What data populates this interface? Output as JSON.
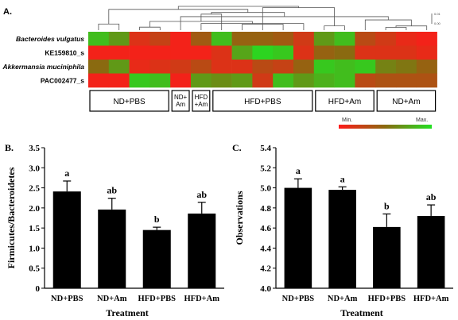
{
  "chart_data": [
    {
      "panel": "A.",
      "type": "heatmap",
      "rows": [
        "Bacteroides vulgatus",
        "KE159810_s",
        "Akkermansia muciniphila",
        "PAC002477_s"
      ],
      "group_labels": [
        "ND+PBS",
        "ND+\nAm",
        "HFD\n+Am",
        "HFD+PBS",
        "HFD+Am",
        "ND+Am"
      ],
      "group_sizes": [
        4,
        1,
        1,
        5,
        3,
        3
      ],
      "values": [
        [
          0.85,
          0.7,
          0.15,
          0.25,
          0.05,
          0.4,
          0.85,
          0.45,
          0.45,
          0.4,
          0.2,
          0.7,
          0.85,
          0.3,
          0.2,
          0.1,
          0.05
        ],
        [
          0.05,
          0.05,
          0.05,
          0.05,
          0.05,
          0.05,
          0.15,
          0.75,
          0.95,
          0.9,
          0.15,
          0.45,
          0.5,
          0.15,
          0.15,
          0.15,
          0.1
        ],
        [
          0.5,
          0.7,
          0.1,
          0.15,
          0.2,
          0.3,
          0.15,
          0.15,
          0.3,
          0.25,
          0.45,
          0.9,
          0.85,
          0.9,
          0.6,
          0.55,
          0.45
        ],
        [
          0.05,
          0.05,
          0.9,
          0.85,
          0.05,
          0.7,
          0.65,
          0.7,
          0.2,
          0.85,
          0.7,
          0.8,
          0.85,
          0.3,
          0.35,
          0.35,
          0.35
        ]
      ],
      "color_min": "#ff1a1a",
      "color_mid": "#8a6a10",
      "color_max": "#22e022",
      "legend_min": "Min.",
      "legend_max": "Max.",
      "dendrogram_scale": [
        "0.01",
        "0.00"
      ]
    },
    {
      "panel": "B.",
      "type": "bar",
      "categories": [
        "ND+PBS",
        "ND+Am",
        "HFD+PBS",
        "HFD+Am"
      ],
      "values": [
        2.41,
        1.96,
        1.45,
        1.86
      ],
      "errors": [
        0.26,
        0.28,
        0.07,
        0.28
      ],
      "letters": [
        "a",
        "ab",
        "b",
        "ab"
      ],
      "xlabel": "Treatment",
      "ylabel": "Firmicutes/Bacteroidetes",
      "ylim": [
        0,
        3.5
      ],
      "yticks": [
        "0",
        "0.5",
        "1.0",
        "1.5",
        "2.0",
        "2.5",
        "3.0",
        "3.5"
      ],
      "bar_color": "#000000"
    },
    {
      "panel": "C.",
      "type": "bar",
      "categories": [
        "ND+PBS",
        "ND+Am",
        "HFD+PBS",
        "HFD+Am"
      ],
      "values": [
        5.0,
        4.98,
        4.61,
        4.72
      ],
      "errors": [
        0.09,
        0.03,
        0.13,
        0.11
      ],
      "letters": [
        "a",
        "a",
        "b",
        "ab"
      ],
      "xlabel": "Treatment",
      "ylabel": "Observations",
      "ylim": [
        4.0,
        5.4
      ],
      "yticks": [
        "4.0",
        "4.2",
        "4.4",
        "4.6",
        "4.8",
        "5.0",
        "5.2",
        "5.4"
      ],
      "bar_color": "#000000"
    }
  ]
}
